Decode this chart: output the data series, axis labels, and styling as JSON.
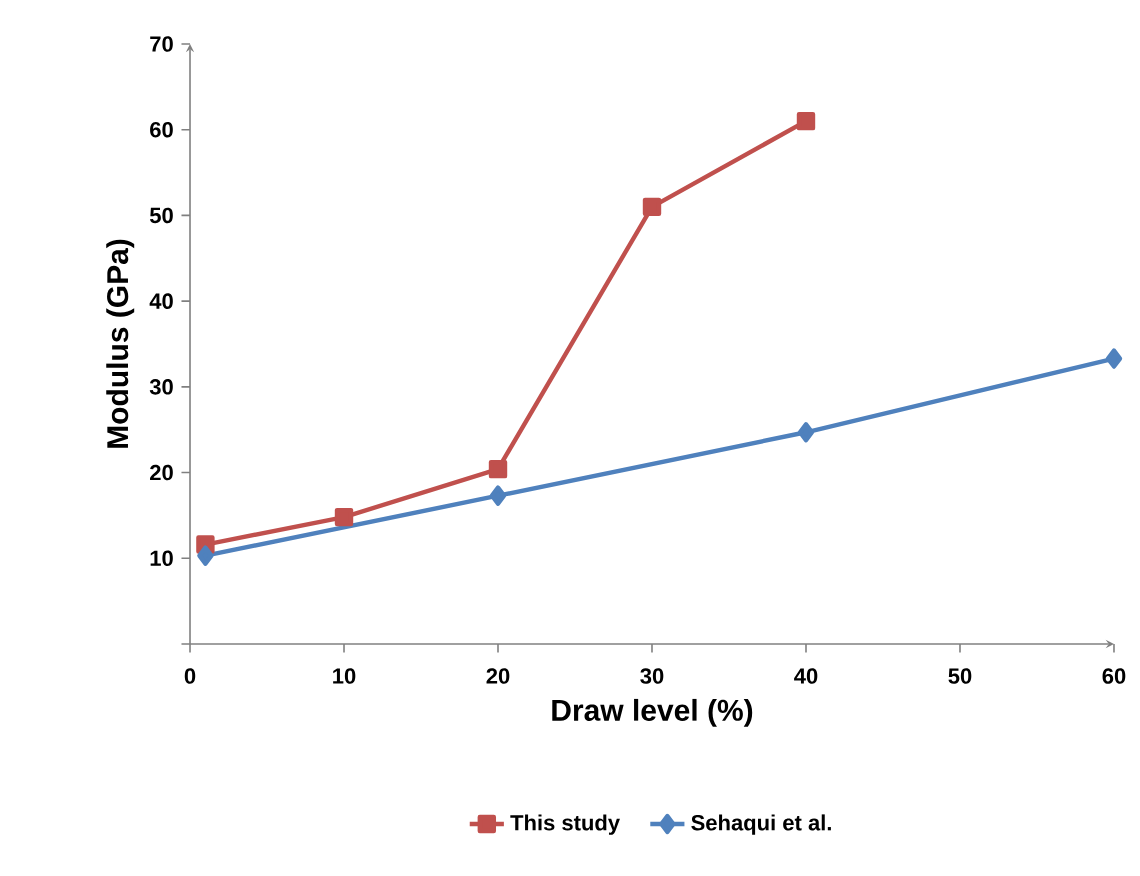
{
  "chart_data": {
    "type": "line",
    "xlabel": "Draw level (%)",
    "ylabel": "Modulus (GPa)",
    "xlim": [
      0,
      60
    ],
    "xticks": [
      0,
      10,
      20,
      30,
      40,
      50,
      60
    ],
    "ylim": [
      0,
      70
    ],
    "yticks": [
      {
        "value": 0,
        "label": null
      },
      10,
      20,
      30,
      40,
      50,
      60,
      70
    ],
    "grid": false,
    "legend": "bottom",
    "series": [
      {
        "name": "This study",
        "color": "#c0504d",
        "marker": "square",
        "x": [
          1,
          10,
          20,
          30,
          40
        ],
        "values": [
          11.6,
          14.8,
          20.4,
          51.0,
          61.0
        ]
      },
      {
        "name": "Sehaqui et al.",
        "color": "#4f81bd",
        "marker": "diamond",
        "x": [
          1,
          20,
          40,
          60
        ],
        "values": [
          10.3,
          17.3,
          24.7,
          33.3
        ]
      }
    ]
  }
}
